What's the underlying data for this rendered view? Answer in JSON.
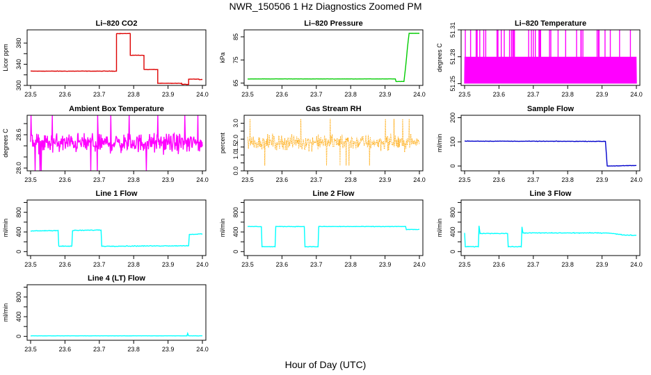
{
  "title": "NWR_150506  1 Hz Diagnostics Zoomed PM",
  "xlabel": "Hour of Day (UTC)",
  "colors": {
    "red": "#dd0000",
    "green": "#00cc00",
    "magenta": "#ff00ff",
    "orange": "#ffa500",
    "blue": "#0000cc",
    "cyan": "#00ffff"
  },
  "chart_data": [
    {
      "type": "line",
      "title": "Li–820 CO2",
      "ylabel": "Licor ppm",
      "color": "red",
      "xlim": [
        23.5,
        24.0
      ],
      "ylim": [
        300,
        405
      ],
      "xticks": [
        "23.5",
        "23.6",
        "23.7",
        "23.8",
        "23.9",
        "24.0"
      ],
      "yticks": [
        300,
        320,
        340,
        360,
        380
      ],
      "y_tick_labels": [
        "300",
        "",
        "340",
        "",
        "380"
      ],
      "noise": 0.5,
      "segments": [
        [
          23.5,
          23.75,
          327
        ],
        [
          23.75,
          23.76,
          398
        ],
        [
          23.76,
          23.79,
          398
        ],
        [
          23.79,
          23.83,
          357
        ],
        [
          23.83,
          23.87,
          330
        ],
        [
          23.87,
          23.94,
          304
        ],
        [
          23.94,
          23.96,
          302
        ],
        [
          23.96,
          23.99,
          312
        ],
        [
          23.99,
          24.0,
          311
        ]
      ]
    },
    {
      "type": "line",
      "title": "Li–820 Pressure",
      "ylabel": "kPa",
      "color": "green",
      "xlim": [
        23.5,
        24.0
      ],
      "ylim": [
        64,
        88
      ],
      "xticks": [
        "23.5",
        "23.6",
        "23.7",
        "23.8",
        "23.9",
        "24.0"
      ],
      "yticks": [
        65,
        75,
        85
      ],
      "y_tick_labels": [
        "65",
        "75",
        "85"
      ],
      "noise": 0.05,
      "points": [
        [
          23.5,
          66.8
        ],
        [
          23.93,
          66.8
        ],
        [
          23.932,
          65.7
        ],
        [
          23.955,
          65.7
        ],
        [
          23.96,
          72
        ],
        [
          23.965,
          80
        ],
        [
          23.97,
          86.5
        ],
        [
          24.0,
          86.5
        ]
      ]
    },
    {
      "type": "line",
      "title": "Li–820 Temperature",
      "ylabel": "degrees C",
      "color": "magenta",
      "xlim": [
        23.5,
        24.0
      ],
      "ylim": [
        51.248,
        51.31
      ],
      "xticks": [
        "23.5",
        "23.6",
        "23.7",
        "23.8",
        "23.9",
        "24.0"
      ],
      "yticks": [
        51.25,
        51.28,
        51.31
      ],
      "y_tick_labels": [
        "51.25",
        "51.28",
        "51.31"
      ],
      "pattern": "square",
      "levels": [
        51.25,
        51.28
      ],
      "spike_level": 51.31
    },
    {
      "type": "line",
      "title": "Ambient Box Temperature",
      "ylabel": "degrees C",
      "color": "magenta",
      "xlim": [
        23.5,
        24.0
      ],
      "ylim": [
        27.95,
        28.95
      ],
      "xticks": [
        "23.5",
        "23.6",
        "23.7",
        "23.8",
        "23.9",
        "24.0"
      ],
      "yticks": [
        28.0,
        28.2,
        28.4,
        28.6,
        28.8
      ],
      "y_tick_labels": [
        "28.0",
        "",
        "",
        "28.6",
        ""
      ],
      "pattern": "noise",
      "center": 28.45,
      "amplitude": 0.25
    },
    {
      "type": "scatter",
      "title": "Gas Stream RH",
      "ylabel": "percent",
      "color": "orange",
      "xlim": [
        23.5,
        24.0
      ],
      "ylim": [
        0,
        3.5
      ],
      "xticks": [
        "23.5",
        "23.6",
        "23.7",
        "23.8",
        "23.9",
        "24.0"
      ],
      "yticks": [
        0.0,
        0.5,
        1.0,
        1.5,
        2.0,
        2.5,
        3.0
      ],
      "y_tick_labels": [
        "0.0",
        "",
        "1.0",
        "1.5",
        "2.0",
        "",
        "3.0"
      ],
      "pattern": "noise",
      "center": 1.8,
      "amplitude": 0.7
    },
    {
      "type": "line",
      "title": "Sample Flow",
      "ylabel": "ml/min",
      "color": "blue",
      "xlim": [
        23.5,
        24.0
      ],
      "ylim": [
        -20,
        210
      ],
      "xticks": [
        "23.5",
        "23.6",
        "23.7",
        "23.8",
        "23.9",
        "24.0"
      ],
      "yticks": [
        0,
        100,
        200
      ],
      "y_tick_labels": [
        "0",
        "100",
        "200"
      ],
      "noise": 1.2,
      "points": [
        [
          23.5,
          103
        ],
        [
          23.91,
          102
        ],
        [
          23.915,
          0
        ],
        [
          24.0,
          2
        ]
      ]
    },
    {
      "type": "line",
      "title": "Line 1 Flow",
      "ylabel": "ml/min",
      "color": "cyan",
      "xlim": [
        23.5,
        24.0
      ],
      "ylim": [
        -80,
        1050
      ],
      "xticks": [
        "23.5",
        "23.6",
        "23.7",
        "23.8",
        "23.9",
        "24.0"
      ],
      "yticks": [
        0,
        200,
        400,
        600,
        800,
        1000
      ],
      "y_tick_labels": [
        "0",
        "",
        "400",
        "",
        "800",
        ""
      ],
      "noise": 10,
      "points": [
        [
          23.5,
          420
        ],
        [
          23.58,
          430
        ],
        [
          23.582,
          110
        ],
        [
          23.62,
          110
        ],
        [
          23.622,
          430
        ],
        [
          23.705,
          440
        ],
        [
          23.707,
          110
        ],
        [
          23.96,
          120
        ],
        [
          23.962,
          350
        ],
        [
          24.0,
          360
        ]
      ]
    },
    {
      "type": "line",
      "title": "Line 2 Flow",
      "ylabel": "ml/min",
      "color": "cyan",
      "xlim": [
        23.5,
        24.0
      ],
      "ylim": [
        -80,
        1050
      ],
      "xticks": [
        "23.5",
        "23.6",
        "23.7",
        "23.8",
        "23.9",
        "24.0"
      ],
      "yticks": [
        0,
        200,
        400,
        600,
        800,
        1000
      ],
      "y_tick_labels": [
        "0",
        "",
        "400",
        "",
        "800",
        ""
      ],
      "noise": 7,
      "points": [
        [
          23.5,
          510
        ],
        [
          23.54,
          510
        ],
        [
          23.542,
          100
        ],
        [
          23.58,
          100
        ],
        [
          23.582,
          510
        ],
        [
          23.665,
          510
        ],
        [
          23.667,
          100
        ],
        [
          23.705,
          100
        ],
        [
          23.707,
          510
        ],
        [
          23.96,
          510
        ],
        [
          23.962,
          450
        ],
        [
          24.0,
          450
        ]
      ]
    },
    {
      "type": "line",
      "title": "Line 3 Flow",
      "ylabel": "ml/min",
      "color": "cyan",
      "xlim": [
        23.5,
        24.0
      ],
      "ylim": [
        -80,
        1050
      ],
      "xticks": [
        "23.5",
        "23.6",
        "23.7",
        "23.8",
        "23.9",
        "24.0"
      ],
      "yticks": [
        0,
        200,
        400,
        600,
        800,
        1000
      ],
      "y_tick_labels": [
        "0",
        "",
        "400",
        "",
        "800",
        ""
      ],
      "noise": 10,
      "points": [
        [
          23.5,
          380
        ],
        [
          23.502,
          100
        ],
        [
          23.54,
          100
        ],
        [
          23.542,
          520
        ],
        [
          23.545,
          370
        ],
        [
          23.625,
          370
        ],
        [
          23.627,
          100
        ],
        [
          23.665,
          100
        ],
        [
          23.667,
          500
        ],
        [
          23.67,
          380
        ],
        [
          23.92,
          380
        ],
        [
          23.96,
          340
        ],
        [
          24.0,
          330
        ]
      ]
    },
    {
      "type": "line",
      "title": "Line 4 (LT) Flow",
      "ylabel": "ml/min",
      "color": "cyan",
      "xlim": [
        23.5,
        24.0
      ],
      "ylim": [
        -80,
        1050
      ],
      "xticks": [
        "23.5",
        "23.6",
        "23.7",
        "23.8",
        "23.9",
        "24.0"
      ],
      "yticks": [
        0,
        200,
        400,
        600,
        800,
        1000
      ],
      "y_tick_labels": [
        "0",
        "",
        "400",
        "",
        "800",
        ""
      ],
      "noise": 2,
      "points": [
        [
          23.5,
          10
        ],
        [
          23.955,
          10
        ],
        [
          23.957,
          60
        ],
        [
          23.96,
          10
        ],
        [
          24.0,
          10
        ]
      ]
    }
  ]
}
